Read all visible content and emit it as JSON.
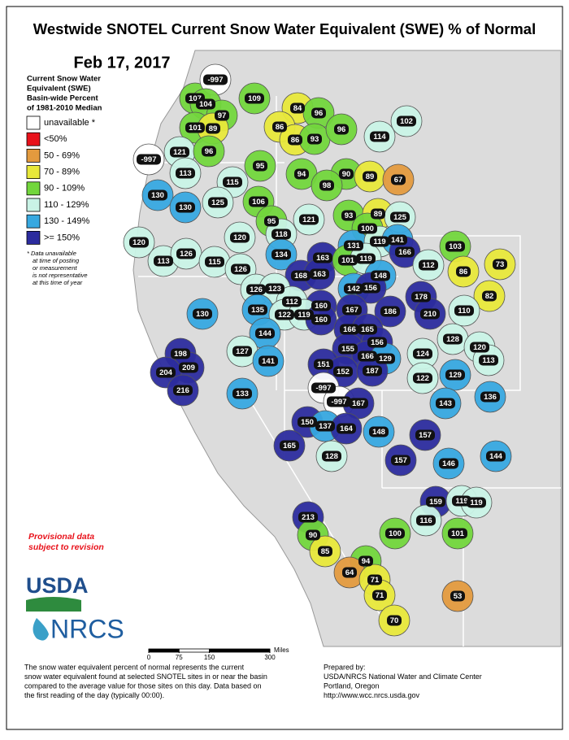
{
  "title": "Westwide SNOTEL Current Snow Water Equivalent (SWE) % of Normal",
  "date": "Feb 17, 2017",
  "legend": {
    "title_lines": [
      "Current Snow Water",
      "Equivalent (SWE)",
      "Basin-wide Percent",
      "of 1981-2010 Median"
    ],
    "items": [
      {
        "label": "unavailable *",
        "color": "#ffffff"
      },
      {
        "label": "<50%",
        "color": "#e8111a"
      },
      {
        "label": "50 - 69%",
        "color": "#e39a3e"
      },
      {
        "label": "70 - 89%",
        "color": "#e8e83a"
      },
      {
        "label": "90 - 109%",
        "color": "#72d63c"
      },
      {
        "label": "110 - 129%",
        "color": "#c9f3e6"
      },
      {
        "label": "130 - 149%",
        "color": "#37a8e0"
      },
      {
        "label": ">= 150%",
        "color": "#2c2c9e"
      }
    ],
    "footnote_lines": [
      "*  Data unavailable",
      "at time of posting",
      "or measurement",
      "is not representative",
      "at this time of year"
    ]
  },
  "provisional_lines": [
    "Provisional data",
    "subject to revision"
  ],
  "logos": {
    "usda": "USDA",
    "nrcs": "NRCS"
  },
  "scale": {
    "ticks": [
      0,
      75,
      150,
      300
    ],
    "unit": "Miles"
  },
  "footer_left": [
    "The snow water equivalent percent of normal represents the current",
    "snow water equivalent found at selected SNOTEL sites in or near the basin",
    "compared to the average value for those sites on this day. Data based on",
    "the first reading of the day (typically 00:00)."
  ],
  "footer_right": [
    "Prepared by:",
    "USDA/NRCS National Water and Climate Center",
    "Portland, Oregon",
    "http://www.wcc.nrcs.usda.gov"
  ],
  "basins": {
    "values": [
      107,
      -997,
      104,
      97,
      109,
      84,
      96,
      102,
      101,
      89,
      86,
      86,
      93,
      96,
      114,
      121,
      96,
      -997,
      113,
      95,
      94,
      90,
      89,
      67,
      98,
      130,
      115,
      125,
      106,
      130,
      121,
      93,
      89,
      125,
      95,
      100,
      118,
      120,
      120,
      131,
      119,
      141,
      103,
      113,
      126,
      115,
      134,
      163,
      101,
      119,
      166,
      73,
      126,
      112,
      86,
      168,
      163,
      148,
      82,
      126,
      123,
      142,
      156,
      178,
      112,
      160,
      130,
      135,
      122,
      119,
      167,
      186,
      210,
      110,
      160,
      144,
      166,
      165,
      128,
      156,
      127,
      155,
      120,
      166,
      129,
      124,
      113,
      198,
      141,
      151,
      209,
      204,
      152,
      187,
      122,
      129,
      -997,
      216,
      133,
      136,
      -997,
      167,
      143,
      150,
      137,
      164,
      148,
      157,
      165,
      128,
      157,
      146,
      144,
      159,
      119,
      119,
      116,
      213,
      100,
      101,
      90,
      85,
      94,
      64,
      71,
      53,
      71,
      70
    ],
    "colors": [
      "#72d63c",
      "#ffffff",
      "#72d63c",
      "#72d63c",
      "#72d63c",
      "#e8e83a",
      "#72d63c",
      "#c9f3e6",
      "#72d63c",
      "#e8e83a",
      "#e8e83a",
      "#e8e83a",
      "#72d63c",
      "#72d63c",
      "#c9f3e6",
      "#c9f3e6",
      "#72d63c",
      "#ffffff",
      "#c9f3e6",
      "#72d63c",
      "#72d63c",
      "#72d63c",
      "#e8e83a",
      "#e39a3e",
      "#72d63c",
      "#37a8e0",
      "#c9f3e6",
      "#c9f3e6",
      "#72d63c",
      "#37a8e0",
      "#c9f3e6",
      "#72d63c",
      "#e8e83a",
      "#c9f3e6",
      "#72d63c",
      "#72d63c",
      "#c9f3e6",
      "#c9f3e6",
      "#c9f3e6",
      "#37a8e0",
      "#c9f3e6",
      "#37a8e0",
      "#72d63c",
      "#c9f3e6",
      "#c9f3e6",
      "#c9f3e6",
      "#37a8e0",
      "#2c2c9e",
      "#72d63c",
      "#c9f3e6",
      "#2c2c9e",
      "#e8e83a",
      "#c9f3e6",
      "#c9f3e6",
      "#e8e83a",
      "#2c2c9e",
      "#2c2c9e",
      "#37a8e0",
      "#e8e83a",
      "#c9f3e6",
      "#c9f3e6",
      "#37a8e0",
      "#2c2c9e",
      "#2c2c9e",
      "#c9f3e6",
      "#2c2c9e",
      "#37a8e0",
      "#37a8e0",
      "#c9f3e6",
      "#c9f3e6",
      "#2c2c9e",
      "#2c2c9e",
      "#2c2c9e",
      "#c9f3e6",
      "#2c2c9e",
      "#37a8e0",
      "#2c2c9e",
      "#2c2c9e",
      "#c9f3e6",
      "#2c2c9e",
      "#c9f3e6",
      "#2c2c9e",
      "#c9f3e6",
      "#2c2c9e",
      "#37a8e0",
      "#c9f3e6",
      "#c9f3e6",
      "#2c2c9e",
      "#37a8e0",
      "#2c2c9e",
      "#2c2c9e",
      "#2c2c9e",
      "#2c2c9e",
      "#2c2c9e",
      "#c9f3e6",
      "#37a8e0",
      "#ffffff",
      "#2c2c9e",
      "#37a8e0",
      "#37a8e0",
      "#ffffff",
      "#2c2c9e",
      "#37a8e0",
      "#2c2c9e",
      "#37a8e0",
      "#2c2c9e",
      "#37a8e0",
      "#2c2c9e",
      "#2c2c9e",
      "#c9f3e6",
      "#2c2c9e",
      "#37a8e0",
      "#37a8e0",
      "#2c2c9e",
      "#c9f3e6",
      "#c9f3e6",
      "#c9f3e6",
      "#2c2c9e",
      "#72d63c",
      "#72d63c",
      "#72d63c",
      "#e8e83a",
      "#72d63c",
      "#e39a3e",
      "#e8e83a",
      "#e39a3e",
      "#e8e83a",
      "#e8e83a"
    ]
  }
}
